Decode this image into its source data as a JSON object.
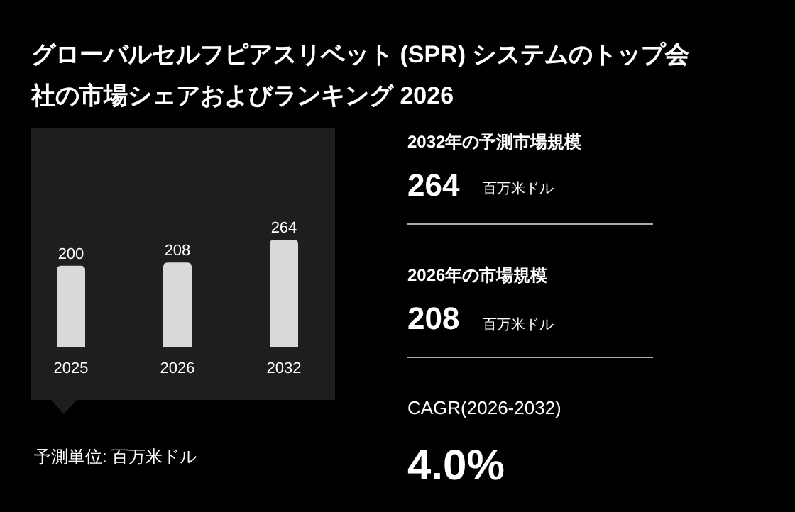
{
  "chart_data": [
    {
      "type": "bar",
      "title": "グローバルセルフピアスリベット (SPR) システムのトップ会社の市場シェアおよびランキング 2026",
      "categories": [
        "2025",
        "2026",
        "2032"
      ],
      "values": [
        200,
        208,
        264
      ],
      "color": "#d9d9d9",
      "data_labels": true,
      "annotations": [
        "予測単位: 百万米ドル"
      ]
    },
    {
      "type": "other",
      "annotations": [
        "2032年の予測市場規模",
        "264",
        "百万米ドル",
        "2026年の市場規模",
        "208",
        "百万米ドル",
        "CAGR(2026-2032)",
        "4.0%"
      ]
    }
  ]
}
